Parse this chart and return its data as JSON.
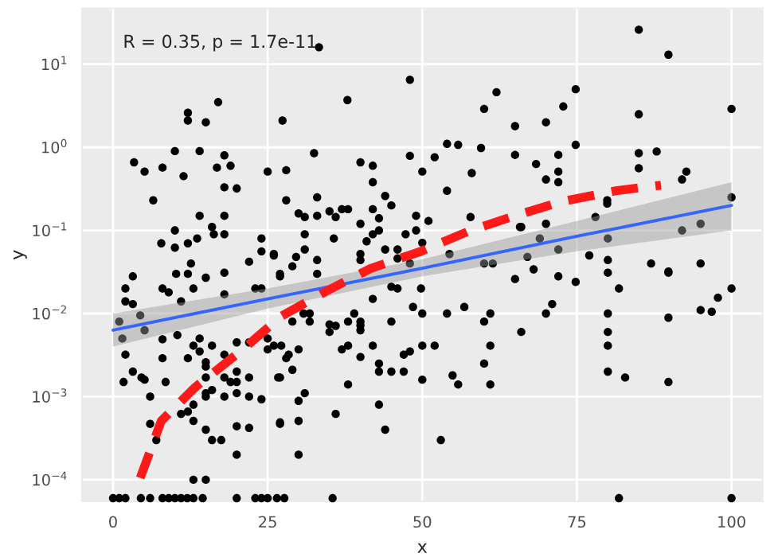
{
  "chart_data": {
    "type": "scatter",
    "xlabel": "x",
    "ylabel": "y",
    "log": "y",
    "grid": true,
    "annotations": [
      "R = 0.35, p = 1.7e-11"
    ],
    "xlim": [
      -5,
      105
    ],
    "xticks": [
      0,
      25,
      50,
      75,
      100
    ],
    "ylim": [
      5.5e-05,
      47
    ],
    "yticks": [
      {
        "value": 10,
        "label": "10$^{1}$"
      },
      {
        "value": 1,
        "label": "10$^{0}$"
      },
      {
        "value": 0.1,
        "label": "10$^{−1}$"
      },
      {
        "value": 0.01,
        "label": "10$^{−2}$"
      },
      {
        "value": 0.001,
        "label": "10$^{−3}$"
      },
      {
        "value": 0.0001,
        "label": "10$^{−4}$"
      }
    ],
    "series": [
      {
        "marker": "circle",
        "color": "#000000",
        "x": [
          33.3,
          17,
          12.1,
          12.1,
          15,
          10,
          14,
          3.4,
          5.1,
          8,
          11.4,
          18,
          16.8,
          19,
          18,
          20,
          6.5,
          25,
          14,
          18,
          16,
          10,
          16.3,
          18,
          7.8,
          12.1,
          13.6,
          10,
          24,
          24,
          26,
          22,
          12.6,
          27.4,
          37.9,
          48,
          62,
          60,
          65,
          65,
          32.5,
          28,
          40,
          42,
          42,
          48,
          50,
          52,
          54,
          55.8,
          59.5,
          58,
          54,
          28,
          33,
          30,
          31,
          33,
          35,
          36,
          37,
          38,
          44,
          45,
          42,
          40,
          43,
          49,
          51,
          57.8,
          43,
          49,
          31,
          35.7,
          42,
          47.3,
          65.8,
          41,
          44,
          46,
          50,
          26,
          29.6,
          31,
          33,
          40,
          40,
          46,
          48,
          54.4,
          60,
          61.4,
          85,
          89.8,
          74.8,
          72.8,
          85,
          100,
          70,
          74.8,
          72,
          68.4,
          72,
          70,
          72,
          85,
          87.9,
          85,
          92.7,
          92,
          79.9,
          79.9,
          78,
          100,
          66,
          70,
          95,
          92,
          69,
          80,
          72,
          67,
          77,
          80,
          87,
          95,
          89.8,
          68,
          65,
          72,
          74.8,
          80,
          81.8,
          89.8,
          100,
          97.8,
          95,
          96.8,
          89.8,
          71,
          70,
          66,
          80,
          80,
          80,
          80,
          82.8,
          89.8,
          81.8,
          100,
          27,
          29,
          33,
          49.8,
          42,
          45,
          46,
          48.5,
          50,
          54,
          56.8,
          60,
          61,
          39,
          38,
          40,
          40,
          40,
          35,
          36,
          35,
          45,
          31.8,
          31.8,
          30.8,
          29,
          26,
          27.2,
          30,
          28.4,
          28,
          29,
          26.7,
          37,
          38,
          40,
          42,
          43,
          43,
          45,
          47,
          48,
          47,
          50,
          52,
          50,
          38,
          54.9,
          55.8,
          60,
          61,
          61,
          30,
          31,
          36,
          43,
          27,
          30,
          44,
          30,
          53,
          26.5,
          27.7,
          35.5,
          1,
          1.5,
          2,
          2,
          3.2,
          3.2,
          2,
          3.2,
          1.7,
          4.4,
          5.1,
          4.6,
          5.1,
          6,
          6,
          7,
          8,
          8,
          8,
          8.5,
          9,
          10.2,
          11,
          10.4,
          11,
          12.1,
          13,
          12.1,
          13,
          13,
          12.1,
          13,
          14,
          14,
          15,
          15,
          15,
          16,
          15,
          15,
          16,
          15,
          16,
          17.5,
          13,
          15,
          18,
          18,
          18,
          19,
          20,
          20,
          20,
          20,
          20,
          22,
          22,
          22,
          24,
          23,
          24,
          25,
          25,
          27,
          27,
          27,
          18,
          18,
          15,
          22,
          20,
          0,
          1,
          2,
          4.5,
          6,
          8,
          9,
          10,
          11,
          12,
          13,
          14.5,
          20,
          23,
          24,
          25
        ],
        "values": [
          16,
          3.5,
          2.6,
          2.1,
          2.0,
          0.9,
          0.9,
          0.66,
          0.51,
          0.57,
          0.45,
          0.8,
          0.57,
          0.6,
          0.33,
          0.32,
          0.23,
          0.51,
          0.15,
          0.15,
          0.11,
          0.1,
          0.09,
          0.09,
          0.07,
          0.07,
          0.08,
          0.062,
          0.08,
          0.056,
          0.05,
          0.042,
          0.04,
          2.1,
          3.7,
          6.5,
          4.6,
          2.9,
          1.8,
          0.81,
          0.85,
          0.53,
          0.66,
          0.6,
          0.38,
          0.79,
          0.51,
          0.76,
          1.1,
          1.07,
          0.98,
          0.49,
          0.3,
          0.23,
          0.25,
          0.16,
          0.145,
          0.15,
          0.17,
          0.145,
          0.18,
          0.18,
          0.26,
          0.2,
          0.18,
          0.12,
          0.14,
          0.15,
          0.13,
          0.145,
          0.1,
          0.1,
          0.09,
          0.08,
          0.09,
          0.09,
          0.11,
          0.074,
          0.059,
          0.059,
          0.071,
          0.052,
          0.048,
          0.059,
          0.044,
          0.052,
          0.044,
          0.046,
          0.04,
          0.052,
          0.04,
          0.04,
          26,
          13,
          5,
          3.1,
          2.5,
          2.9,
          2.0,
          1.07,
          0.81,
          0.63,
          0.51,
          0.41,
          0.38,
          0.85,
          0.89,
          0.56,
          0.51,
          0.41,
          0.23,
          0.21,
          0.145,
          0.25,
          0.11,
          0.12,
          0.12,
          0.1,
          0.08,
          0.08,
          0.059,
          0.048,
          0.05,
          0.044,
          0.04,
          0.04,
          0.032,
          0.034,
          0.026,
          0.028,
          0.024,
          0.031,
          0.02,
          0.031,
          0.02,
          0.0155,
          0.011,
          0.0105,
          0.0089,
          0.013,
          0.01,
          0.006,
          0.01,
          0.006,
          0.0041,
          0.002,
          0.0017,
          0.0015,
          6e-05,
          6e-05,
          0.03,
          0.037,
          0.03,
          0.02,
          0.015,
          0.021,
          0.02,
          0.012,
          0.01,
          0.01,
          0.012,
          0.008,
          0.01,
          0.01,
          0.008,
          0.008,
          0.0072,
          0.0063,
          0.0074,
          0.0071,
          0.006,
          0.008,
          0.01,
          0.008,
          0.01,
          0.008,
          0.0041,
          0.0041,
          0.0037,
          0.0032,
          0.0029,
          0.0021,
          0.0017,
          0.0037,
          0.0041,
          0.003,
          0.0041,
          0.0025,
          0.002,
          0.002,
          0.0032,
          0.0035,
          0.002,
          0.0041,
          0.0041,
          0.0016,
          0.0014,
          0.0018,
          0.0014,
          0.0025,
          0.0041,
          0.0014,
          0.00089,
          0.0011,
          0.00062,
          0.0008,
          0.00047,
          0.00051,
          0.0004,
          0.0002,
          0.0003,
          6e-05,
          6e-05,
          6e-05,
          0.008,
          0.005,
          0.02,
          0.014,
          0.013,
          0.028,
          0.0032,
          0.002,
          0.0015,
          0.0095,
          0.0063,
          0.0017,
          0.0016,
          0.001,
          0.00047,
          0.0003,
          0.02,
          0.0049,
          0.0029,
          0.0015,
          0.018,
          0.03,
          0.014,
          0.0055,
          0.00062,
          0.03,
          0.02,
          0.0029,
          0.0041,
          0.0008,
          0.00066,
          0.00051,
          0.005,
          0.0035,
          0.0026,
          0.0023,
          0.0017,
          0.0041,
          0.0011,
          0.001,
          0.0012,
          0.0004,
          0.0003,
          0.0003,
          0.0001,
          0.0001,
          0.0032,
          0.0017,
          0.001,
          0.0015,
          0.002,
          0.0015,
          0.0011,
          0.00044,
          0.0002,
          0.0017,
          0.001,
          0.00042,
          0.00093,
          0.02,
          0.02,
          0.005,
          0.0037,
          0.0017,
          0.00049,
          0.028,
          0.017,
          0.031,
          0.027,
          0.0045,
          0.0045,
          6e-05,
          6e-05,
          6e-05,
          6e-05,
          6e-05,
          6e-05,
          6e-05,
          6e-05,
          6e-05,
          6e-05,
          6e-05,
          6e-05,
          6e-05,
          6e-05,
          6e-05,
          6e-05
        ]
      },
      {
        "type": "line",
        "color": "#3366ff",
        "line_style": "solid",
        "x": [
          0,
          25,
          50,
          75,
          100
        ],
        "values": [
          0.0063,
          0.015,
          0.035,
          0.085,
          0.2
        ],
        "lower": [
          0.004,
          0.0115,
          0.028,
          0.056,
          0.1
        ],
        "upper": [
          0.01,
          0.02,
          0.045,
          0.13,
          0.38
        ]
      },
      {
        "type": "line",
        "color": "#ff1a1a",
        "line_style": "dashed",
        "x": [
          4.4,
          7.8,
          13.3,
          20.6,
          27.2,
          34.5,
          41.7,
          49.8,
          57.8,
          65,
          72.3,
          81.3,
          88.6
        ],
        "values": [
          0.000105,
          0.00051,
          0.0013,
          0.0035,
          0.0093,
          0.0186,
          0.035,
          0.056,
          0.1,
          0.15,
          0.22,
          0.3,
          0.35
        ]
      }
    ]
  }
}
